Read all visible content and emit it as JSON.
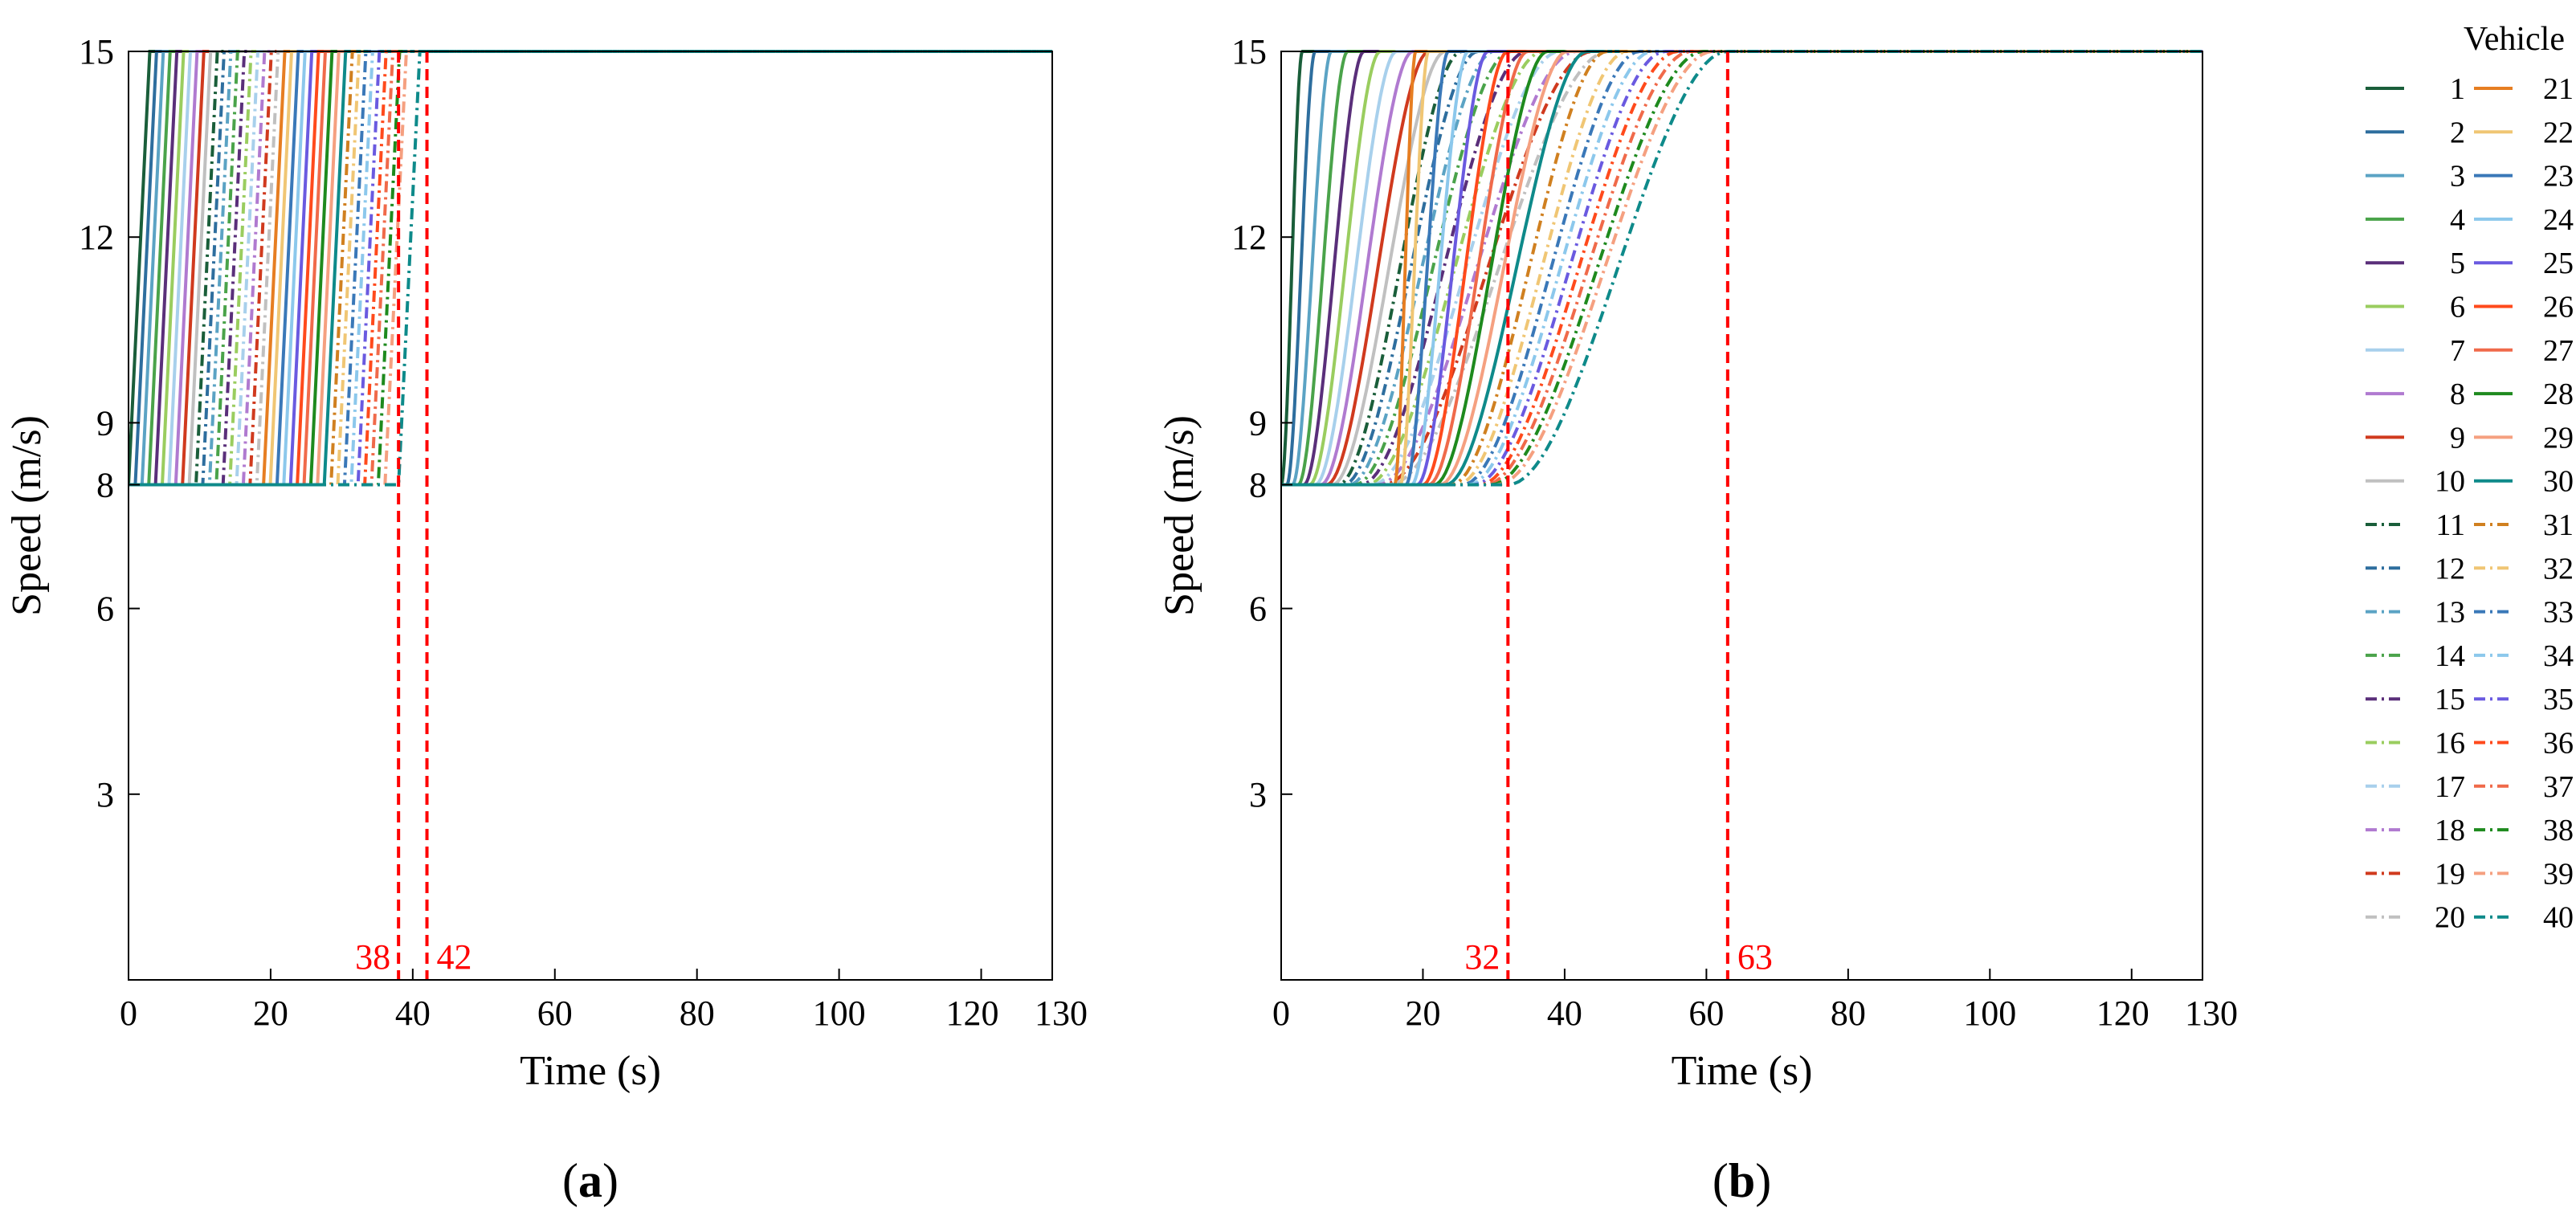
{
  "chart_data": [
    {
      "type": "line",
      "panel_label_open": "(",
      "panel_label_letter": "a",
      "panel_label_close": ")",
      "xlabel": "Time (s)",
      "ylabel": "Speed (m/s)",
      "xlim": [
        0,
        130
      ],
      "ylim": [
        0,
        15
      ],
      "xticks": [
        0,
        20,
        40,
        60,
        80,
        100,
        120,
        130
      ],
      "yticks": [
        3,
        6,
        8,
        9,
        12,
        15
      ],
      "grid": false,
      "initial_speed": 8,
      "final_speed": 15,
      "series_model": "instant switch: speed stays at 8 m/s until start time, then rises linearly over ramp duration to 15 m/s",
      "ramp_duration_s": 3,
      "start_times_s": [
        0.0,
        0.95,
        1.9,
        2.85,
        3.8,
        4.75,
        5.7,
        6.65,
        7.6,
        8.55,
        9.5,
        10.45,
        11.4,
        12.35,
        13.3,
        14.25,
        15.2,
        16.15,
        17.1,
        18.05,
        19.0,
        19.95,
        20.9,
        21.85,
        22.8,
        23.75,
        24.7,
        25.65,
        26.6,
        27.55,
        28.5,
        29.45,
        30.4,
        31.35,
        32.3,
        33.25,
        34.2,
        35.15,
        36.1,
        38.0
      ],
      "markers": [
        {
          "x": 38,
          "label": "38"
        },
        {
          "x": 42,
          "label": "42"
        }
      ]
    },
    {
      "type": "line",
      "panel_label_open": "(",
      "panel_label_letter": "b",
      "panel_label_close": ")",
      "xlabel": "Time (s)",
      "ylabel": "Speed (m/s)",
      "xlim": [
        0,
        130
      ],
      "ylim": [
        0,
        15
      ],
      "xticks": [
        0,
        20,
        40,
        60,
        80,
        100,
        120,
        130
      ],
      "yticks": [
        3,
        6,
        8,
        9,
        12,
        15
      ],
      "grid": false,
      "initial_speed": 8,
      "final_speed": 15,
      "series_model": "smooth S-curve: speed leaves 8 m/s at start time and approaches 15 m/s, taking progressively longer for later vehicles",
      "start_times_s": [
        0.0,
        0.8,
        1.6,
        2.4,
        3.2,
        4.0,
        4.8,
        5.6,
        6.4,
        7.2,
        8.0,
        8.8,
        9.6,
        10.4,
        11.2,
        12.0,
        12.8,
        13.6,
        14.4,
        15.2,
        16.0,
        16.8,
        17.6,
        18.4,
        19.2,
        20.0,
        20.8,
        21.6,
        22.4,
        23.2,
        24.0,
        24.8,
        25.6,
        26.4,
        27.2,
        28.0,
        28.8,
        29.6,
        30.4,
        32.0
      ],
      "settle_times_s": [
        3,
        4,
        5.5,
        7,
        8.5,
        10,
        11.5,
        13,
        14.5,
        16,
        17.5,
        19,
        20.5,
        22,
        23.5,
        25,
        26.5,
        28,
        29.5,
        31,
        3,
        4,
        6,
        8,
        10,
        12,
        14,
        16,
        18,
        20,
        22,
        24,
        25,
        26,
        27,
        28,
        29,
        30,
        30.5,
        31
      ],
      "markers": [
        {
          "x": 32,
          "label": "32"
        },
        {
          "x": 63,
          "label": "63"
        }
      ]
    }
  ],
  "legend": {
    "title": "Vehicle",
    "placement": "right",
    "entries": [
      {
        "label": "1",
        "color": "#1a5e3a",
        "dash": "solid"
      },
      {
        "label": "2",
        "color": "#2e6e9e",
        "dash": "solid"
      },
      {
        "label": "3",
        "color": "#5ba3c4",
        "dash": "solid"
      },
      {
        "label": "4",
        "color": "#4aa34a",
        "dash": "solid"
      },
      {
        "label": "5",
        "color": "#5a2f7a",
        "dash": "solid"
      },
      {
        "label": "6",
        "color": "#9acd5f",
        "dash": "solid"
      },
      {
        "label": "7",
        "color": "#a8d0ec",
        "dash": "solid"
      },
      {
        "label": "8",
        "color": "#b07ad0",
        "dash": "solid"
      },
      {
        "label": "9",
        "color": "#d03a1e",
        "dash": "solid"
      },
      {
        "label": "10",
        "color": "#c0c0c0",
        "dash": "solid"
      },
      {
        "label": "11",
        "color": "#1a5e3a",
        "dash": "dashdot"
      },
      {
        "label": "12",
        "color": "#2e6e9e",
        "dash": "dashdot"
      },
      {
        "label": "13",
        "color": "#5ba3c4",
        "dash": "dashdot"
      },
      {
        "label": "14",
        "color": "#4aa34a",
        "dash": "dashdot"
      },
      {
        "label": "15",
        "color": "#5a2f7a",
        "dash": "dashdot"
      },
      {
        "label": "16",
        "color": "#9acd5f",
        "dash": "dashdot"
      },
      {
        "label": "17",
        "color": "#a8d0ec",
        "dash": "dashdot"
      },
      {
        "label": "18",
        "color": "#b07ad0",
        "dash": "dashdot"
      },
      {
        "label": "19",
        "color": "#d03a1e",
        "dash": "dashdot"
      },
      {
        "label": "20",
        "color": "#c0c0c0",
        "dash": "dashdot"
      },
      {
        "label": "21",
        "color": "#e67e22",
        "dash": "solid"
      },
      {
        "label": "22",
        "color": "#f0c674",
        "dash": "solid"
      },
      {
        "label": "23",
        "color": "#3a78b8",
        "dash": "solid"
      },
      {
        "label": "24",
        "color": "#8cc8ec",
        "dash": "solid"
      },
      {
        "label": "25",
        "color": "#6a5ae0",
        "dash": "solid"
      },
      {
        "label": "26",
        "color": "#ff4a1c",
        "dash": "solid"
      },
      {
        "label": "27",
        "color": "#f06a4a",
        "dash": "solid"
      },
      {
        "label": "28",
        "color": "#1e8a1e",
        "dash": "solid"
      },
      {
        "label": "29",
        "color": "#f5a080",
        "dash": "solid"
      },
      {
        "label": "30",
        "color": "#0e8a8a",
        "dash": "solid"
      },
      {
        "label": "31",
        "color": "#d08020",
        "dash": "dashdot"
      },
      {
        "label": "32",
        "color": "#f0c674",
        "dash": "dashdot"
      },
      {
        "label": "33",
        "color": "#3a78b8",
        "dash": "dashdot"
      },
      {
        "label": "34",
        "color": "#8cc8ec",
        "dash": "dashdot"
      },
      {
        "label": "35",
        "color": "#6a5ae0",
        "dash": "dashdot"
      },
      {
        "label": "36",
        "color": "#ff4a1c",
        "dash": "dashdot"
      },
      {
        "label": "37",
        "color": "#f06a4a",
        "dash": "dashdot"
      },
      {
        "label": "38",
        "color": "#1e8a1e",
        "dash": "dashdot"
      },
      {
        "label": "39",
        "color": "#f5a080",
        "dash": "dashdot"
      },
      {
        "label": "40",
        "color": "#0e8a8a",
        "dash": "dashdot"
      }
    ]
  },
  "colors": {
    "marker": "#ff0000",
    "axis": "#000000",
    "background": "#ffffff"
  }
}
